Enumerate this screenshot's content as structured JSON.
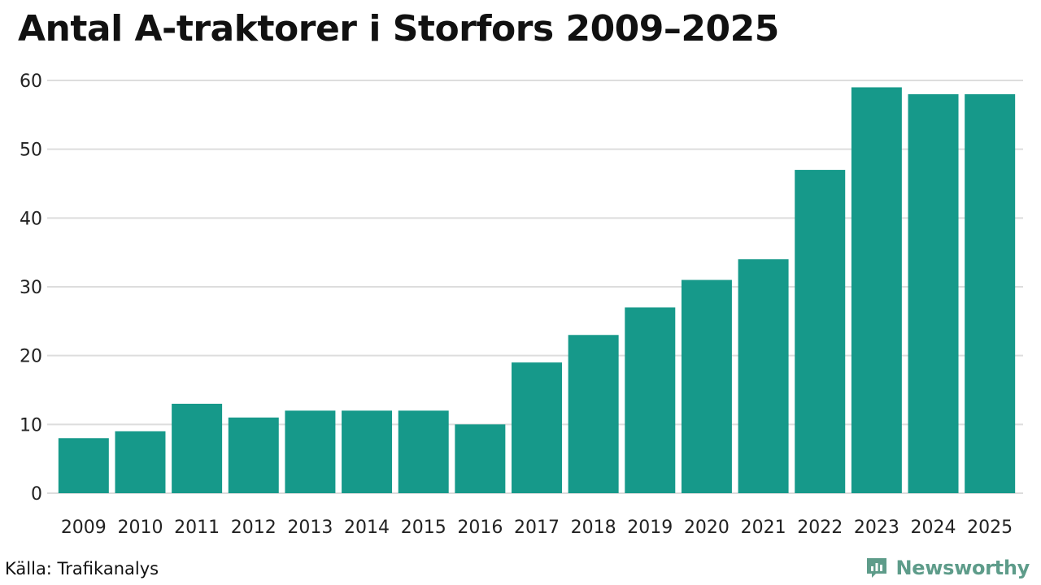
{
  "title": "Antal A-traktorer i Storfors 2009–2025",
  "source": "Källa: Trafikanalys",
  "brand": {
    "name": "Newsworthy",
    "icon": "newsworthy-logo-icon",
    "color": "#5e9c8a"
  },
  "colors": {
    "bar": "#16998a",
    "grid": "#dddddd"
  },
  "chart_data": {
    "type": "bar",
    "title": "Antal A-traktorer i Storfors 2009–2025",
    "xlabel": "",
    "ylabel": "",
    "categories": [
      "2009",
      "2010",
      "2011",
      "2012",
      "2013",
      "2014",
      "2015",
      "2016",
      "2017",
      "2018",
      "2019",
      "2020",
      "2021",
      "2022",
      "2023",
      "2024",
      "2025"
    ],
    "values": [
      8,
      9,
      13,
      11,
      12,
      12,
      12,
      10,
      19,
      23,
      27,
      31,
      34,
      47,
      59,
      58,
      58
    ],
    "ylim": [
      0,
      60
    ],
    "yticks": [
      0,
      10,
      20,
      30,
      40,
      50,
      60
    ],
    "grid": true,
    "legend": "none"
  }
}
